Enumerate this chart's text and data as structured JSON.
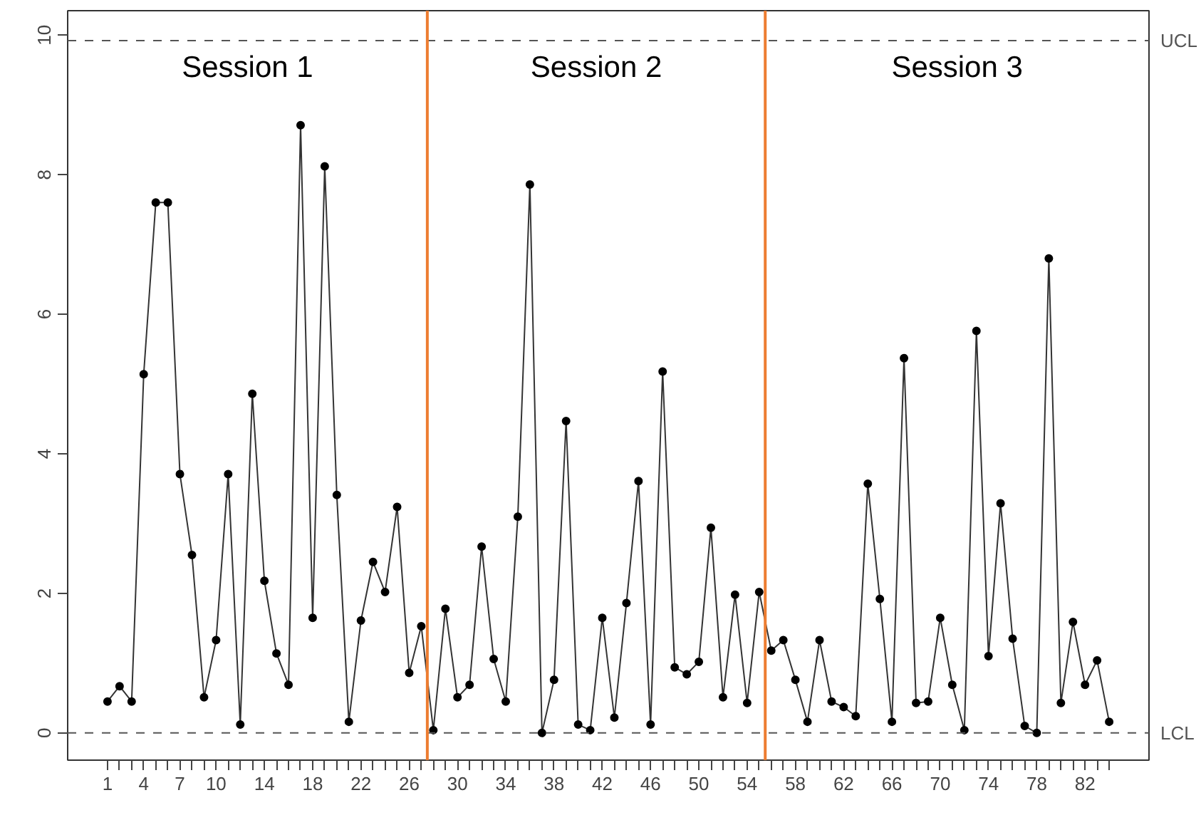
{
  "chart_data": {
    "type": "line",
    "marker": "circle",
    "line_style": "solid",
    "grid": false,
    "x": [
      1,
      2,
      3,
      4,
      5,
      6,
      7,
      8,
      9,
      10,
      11,
      12,
      13,
      14,
      15,
      16,
      17,
      18,
      19,
      20,
      21,
      22,
      23,
      24,
      25,
      26,
      27,
      28,
      29,
      30,
      31,
      32,
      33,
      34,
      35,
      36,
      37,
      38,
      39,
      40,
      41,
      42,
      43,
      44,
      45,
      46,
      47,
      48,
      49,
      50,
      51,
      52,
      53,
      54,
      55,
      56,
      57,
      58,
      59,
      60,
      61,
      62,
      63,
      64,
      65,
      66,
      67,
      68,
      69,
      70,
      71,
      72,
      73,
      74,
      75,
      76,
      77,
      78,
      79,
      80,
      81,
      82,
      83,
      84
    ],
    "series": [
      {
        "color": "#000000",
        "values": [
          0.45,
          0.67,
          0.45,
          5.14,
          7.6,
          7.6,
          3.71,
          2.55,
          0.51,
          1.33,
          3.71,
          0.12,
          4.86,
          2.18,
          1.14,
          0.69,
          8.71,
          1.65,
          8.12,
          3.41,
          0.16,
          1.61,
          2.45,
          2.02,
          3.24,
          0.86,
          1.53,
          0.04,
          1.78,
          0.51,
          0.69,
          2.67,
          1.06,
          0.45,
          3.1,
          7.86,
          0.0,
          0.76,
          4.47,
          0.12,
          0.04,
          1.65,
          0.22,
          1.86,
          3.61,
          0.12,
          5.18,
          0.94,
          0.84,
          1.02,
          2.94,
          0.51,
          1.98,
          0.43,
          2.02,
          1.18,
          1.33,
          0.76,
          0.16,
          1.33,
          0.45,
          0.37,
          0.24,
          3.57,
          1.92,
          0.16,
          5.37,
          0.43,
          0.45,
          1.65,
          0.69,
          0.04,
          5.76,
          1.1,
          3.29,
          1.35,
          0.1,
          0.0,
          6.8,
          0.43,
          1.59,
          0.69,
          1.04,
          0.16
        ]
      }
    ],
    "xlim": [
      -2.3,
      87.3
    ],
    "ylim": [
      -0.39,
      10.35
    ],
    "xticks": [
      1,
      {
        "value": 2,
        "label": null
      },
      {
        "value": 3,
        "label": null
      },
      4,
      {
        "value": 5,
        "label": null
      },
      {
        "value": 6,
        "label": null
      },
      7,
      {
        "value": 8,
        "label": null
      },
      {
        "value": 9,
        "label": null
      },
      10,
      {
        "value": 11,
        "label": null
      },
      {
        "value": 12,
        "label": null
      },
      {
        "value": 13,
        "label": null
      },
      14,
      {
        "value": 15,
        "label": null
      },
      {
        "value": 16,
        "label": null
      },
      {
        "value": 17,
        "label": null
      },
      18,
      {
        "value": 19,
        "label": null
      },
      {
        "value": 20,
        "label": null
      },
      {
        "value": 21,
        "label": null
      },
      22,
      {
        "value": 23,
        "label": null
      },
      {
        "value": 24,
        "label": null
      },
      {
        "value": 25,
        "label": null
      },
      26,
      {
        "value": 27,
        "label": null
      },
      {
        "value": 28,
        "label": null
      },
      {
        "value": 29,
        "label": null
      },
      30,
      {
        "value": 31,
        "label": null
      },
      {
        "value": 32,
        "label": null
      },
      {
        "value": 33,
        "label": null
      },
      34,
      {
        "value": 35,
        "label": null
      },
      {
        "value": 36,
        "label": null
      },
      {
        "value": 37,
        "label": null
      },
      38,
      {
        "value": 39,
        "label": null
      },
      {
        "value": 40,
        "label": null
      },
      {
        "value": 41,
        "label": null
      },
      42,
      {
        "value": 43,
        "label": null
      },
      {
        "value": 44,
        "label": null
      },
      {
        "value": 45,
        "label": null
      },
      46,
      {
        "value": 47,
        "label": null
      },
      {
        "value": 48,
        "label": null
      },
      {
        "value": 49,
        "label": null
      },
      50,
      {
        "value": 51,
        "label": null
      },
      {
        "value": 52,
        "label": null
      },
      {
        "value": 53,
        "label": null
      },
      54,
      {
        "value": 55,
        "label": null
      },
      {
        "value": 56,
        "label": null
      },
      {
        "value": 57,
        "label": null
      },
      58,
      {
        "value": 59,
        "label": null
      },
      {
        "value": 60,
        "label": null
      },
      {
        "value": 61,
        "label": null
      },
      62,
      {
        "value": 63,
        "label": null
      },
      {
        "value": 64,
        "label": null
      },
      {
        "value": 65,
        "label": null
      },
      66,
      {
        "value": 67,
        "label": null
      },
      {
        "value": 68,
        "label": null
      },
      {
        "value": 69,
        "label": null
      },
      70,
      {
        "value": 71,
        "label": null
      },
      {
        "value": 72,
        "label": null
      },
      {
        "value": 73,
        "label": null
      },
      74,
      {
        "value": 75,
        "label": null
      },
      {
        "value": 76,
        "label": null
      },
      {
        "value": 77,
        "label": null
      },
      78,
      {
        "value": 79,
        "label": null
      },
      {
        "value": 80,
        "label": null
      },
      {
        "value": 81,
        "label": null
      },
      82,
      {
        "value": 83,
        "label": null
      },
      {
        "value": 84,
        "label": null
      }
    ],
    "yticks": [
      0,
      2,
      4,
      6,
      8,
      10
    ],
    "ref_lines": [
      {
        "axis": "y",
        "value": 9.92,
        "label": "UCL",
        "color": "#555555",
        "line_style": "dashed"
      },
      {
        "axis": "y",
        "value": 0,
        "label": "LCL",
        "color": "#555555",
        "line_style": "dashed"
      },
      {
        "axis": "x",
        "value": 27.5,
        "label": null,
        "color": "#ed7d31",
        "line_style": "solid"
      },
      {
        "axis": "x",
        "value": 55.5,
        "label": null,
        "color": "#ed7d31",
        "line_style": "solid"
      }
    ],
    "annotations": [
      "Session 1",
      "Session 2",
      "Session 3"
    ]
  }
}
